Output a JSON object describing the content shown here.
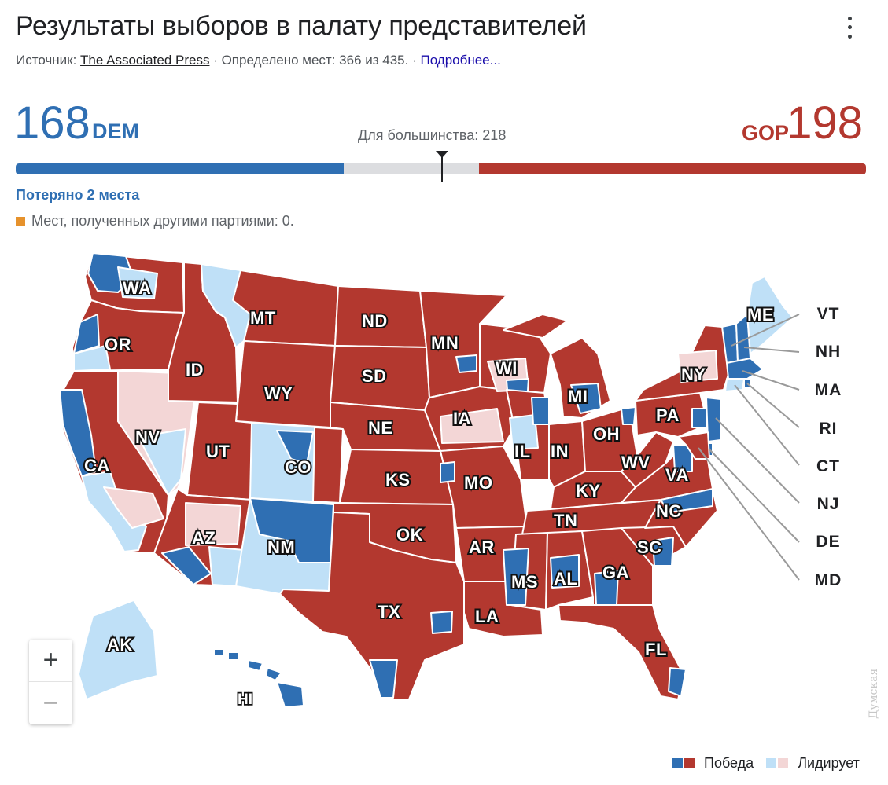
{
  "header": {
    "title": "Результаты выборов в палату представителей",
    "source_prefix": "Источник:",
    "source_name": "The Associated Press",
    "decided_text": "· Определено мест: 366 из 435. ·",
    "more_link": "Подробнее..."
  },
  "tally": {
    "dem_seats": "168",
    "dem_label": "DEM",
    "gop_seats": "198",
    "gop_label": "GOP",
    "majority_text": "Для большинства: 218",
    "total_seats": 435,
    "dem_value": 168,
    "gop_value": 198,
    "majority_value": 218,
    "dem_color": "#2f6fb3",
    "gop_color": "#b3382f",
    "lost_text": "Потеряно 2 места",
    "others_text": "Мест, полученных другими партиями: 0.",
    "others_color": "#e6922c"
  },
  "map": {
    "colors": {
      "dem_win": "#2f6fb3",
      "gop_win": "#b3382f",
      "dem_lead": "#bfe0f7",
      "gop_lead": "#f3d6d6",
      "border": "#ffffff"
    },
    "state_labels": {
      "WA": "WA",
      "OR": "OR",
      "CA": "CA",
      "NV": "NV",
      "ID": "ID",
      "MT": "MT",
      "WY": "WY",
      "UT": "UT",
      "AZ": "AZ",
      "CO": "CO",
      "NM": "NM",
      "ND": "ND",
      "SD": "SD",
      "NE": "NE",
      "KS": "KS",
      "OK": "OK",
      "TX": "TX",
      "MN": "MN",
      "IA": "IA",
      "MO": "MO",
      "AR": "AR",
      "LA": "LA",
      "WI": "WI",
      "IL": "IL",
      "MI": "MI",
      "IN": "IN",
      "OH": "OH",
      "KY": "KY",
      "TN": "TN",
      "MS": "MS",
      "AL": "AL",
      "GA": "GA",
      "FL": "FL",
      "SC": "SC",
      "NC": "NC",
      "VA": "VA",
      "WV": "WV",
      "PA": "PA",
      "NY": "NY",
      "ME": "ME",
      "AK": "AK",
      "HI": "HI"
    },
    "callouts": [
      "VT",
      "NH",
      "MA",
      "RI",
      "CT",
      "NJ",
      "DE",
      "MD"
    ]
  },
  "zoom": {
    "in_label": "+",
    "out_label": "−"
  },
  "legend": {
    "win_label": "Победа",
    "lead_label": "Лидирует"
  },
  "watermark": "Думская"
}
